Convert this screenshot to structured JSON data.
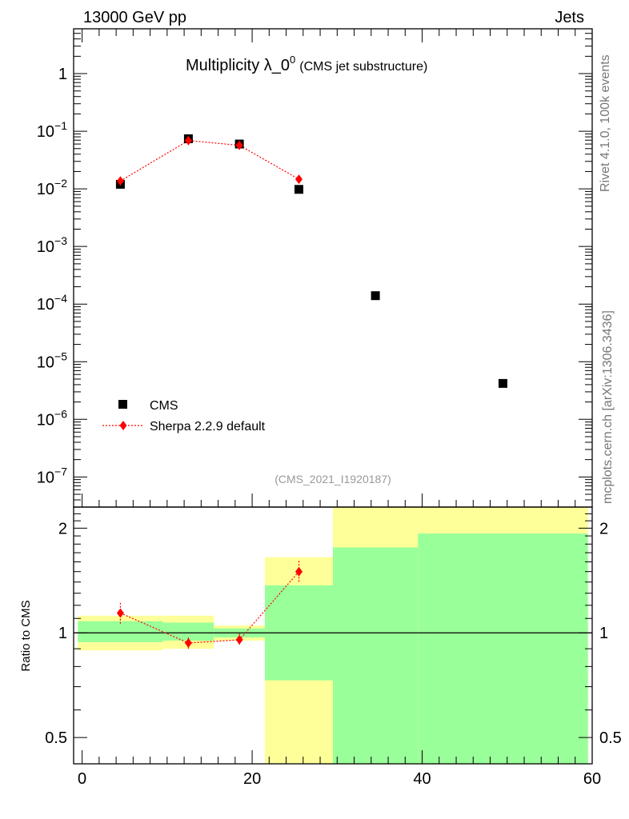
{
  "header": {
    "left": "13000 GeV pp",
    "right": "Jets"
  },
  "side": {
    "rivet": "Rivet 4.1.0,  100k events",
    "mcplots": "mcplots.cern.ch [arXiv:1306.3436]"
  },
  "title": {
    "main": "Multiplicity λ_0",
    "sup": "0",
    "sub": "(CMS jet substructure)"
  },
  "analysis_id": "(CMS_2021_I1920187)",
  "colors": {
    "data": "#000000",
    "mc": "#ff0000",
    "band_inner": "#99ff99",
    "band_outer": "#ffff99"
  },
  "chart_data": [
    {
      "type": "scatter",
      "role": "main",
      "yscale": "log",
      "xlim": [
        -1,
        60
      ],
      "ylim": [
        3e-08,
        6
      ],
      "y_ticks": [
        {
          "value": 1,
          "base": "1",
          "exp": ""
        },
        {
          "value": 0.1,
          "base": "10",
          "exp": "−1"
        },
        {
          "value": 0.01,
          "base": "10",
          "exp": "−2"
        },
        {
          "value": 0.001,
          "base": "10",
          "exp": "−3"
        },
        {
          "value": 0.0001,
          "base": "10",
          "exp": "−4"
        },
        {
          "value": 1e-05,
          "base": "10",
          "exp": "−5"
        },
        {
          "value": 1e-06,
          "base": "10",
          "exp": "−6"
        },
        {
          "value": 1e-07,
          "base": "10",
          "exp": "−7"
        }
      ],
      "legend_position": "lower-left",
      "series": [
        {
          "name": "CMS",
          "marker": "square",
          "x": [
            4.5,
            12.5,
            18.5,
            25.5,
            34.5,
            49.5
          ],
          "y": [
            0.012,
            0.074,
            0.06,
            0.0098,
            0.00014,
            4.2e-06
          ]
        },
        {
          "name": "Sherpa 2.2.9 default",
          "marker": "diamond",
          "line": "dotted",
          "x": [
            4.5,
            12.5,
            18.5,
            25.5
          ],
          "y": [
            0.0137,
            0.069,
            0.057,
            0.0147
          ]
        }
      ]
    },
    {
      "type": "scatter",
      "role": "ratio",
      "yscale": "log",
      "ylabel": "Ratio to CMS",
      "xlim": [
        -1,
        60
      ],
      "ylim": [
        0.42,
        2.3
      ],
      "x_ticks": [
        0,
        20,
        40,
        60
      ],
      "y_ticks": [
        0.5,
        1,
        2
      ],
      "bands": [
        {
          "x0": -0.5,
          "x1": 9.5,
          "inner": [
            0.94,
            1.08
          ],
          "outer": [
            0.89,
            1.12
          ]
        },
        {
          "x0": 9.5,
          "x1": 15.5,
          "inner": [
            0.95,
            1.07
          ],
          "outer": [
            0.9,
            1.12
          ]
        },
        {
          "x0": 15.5,
          "x1": 21.5,
          "inner": [
            0.97,
            1.03
          ],
          "outer": [
            0.95,
            1.05
          ]
        },
        {
          "x0": 21.5,
          "x1": 29.5,
          "inner": [
            0.73,
            1.37
          ],
          "outer": [
            0.42,
            1.65
          ]
        },
        {
          "x0": 29.5,
          "x1": 39.5,
          "inner": [
            0.42,
            1.76
          ],
          "outer": [
            0.42,
            2.3
          ]
        },
        {
          "x0": 39.5,
          "x1": 59.5,
          "inner": [
            0.42,
            1.93
          ],
          "outer": [
            0.42,
            2.3
          ]
        }
      ],
      "series": [
        {
          "name": "Sherpa 2.2.9 default",
          "x": [
            4.5,
            12.5,
            18.5,
            25.5
          ],
          "y": [
            1.14,
            0.935,
            0.955,
            1.5
          ],
          "yerr": [
            0.08,
            0.035,
            0.04,
            0.11
          ]
        }
      ]
    }
  ]
}
